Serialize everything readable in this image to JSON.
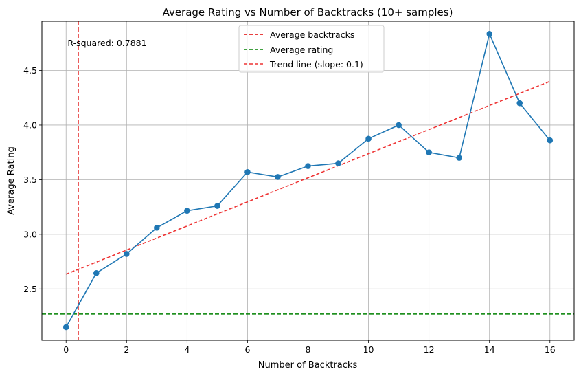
{
  "chart_data": {
    "type": "line",
    "title": "Average Rating vs Number of Backtracks (10+ samples)",
    "xlabel": "Number of Backtracks",
    "ylabel": "Average Rating",
    "xlim": [
      -0.8,
      16.8
    ],
    "ylim": [
      2.03,
      4.95
    ],
    "xticks": [
      0,
      2,
      4,
      6,
      8,
      10,
      12,
      14,
      16
    ],
    "yticks": [
      2.5,
      3.0,
      3.5,
      4.0,
      4.5
    ],
    "xtick_labels": [
      "0",
      "2",
      "4",
      "6",
      "8",
      "10",
      "12",
      "14",
      "16"
    ],
    "ytick_labels": [
      "2.5",
      "3.0",
      "3.5",
      "4.0",
      "4.5"
    ],
    "grid": true,
    "legend_position": "top-center",
    "series": [
      {
        "x": [
          0,
          1,
          2,
          3,
          4,
          5,
          6,
          7,
          8,
          9,
          10,
          11,
          12,
          13,
          14,
          15,
          16
        ],
        "y": [
          2.15,
          2.645,
          2.82,
          3.06,
          3.215,
          3.26,
          3.57,
          3.525,
          3.625,
          3.65,
          3.875,
          4.0,
          3.75,
          3.7,
          4.835,
          4.2,
          3.86
        ],
        "color": "#1f77b4",
        "marker": "circle"
      }
    ],
    "reference_lines": [
      {
        "name": "Average backtracks",
        "orientation": "vertical",
        "value": 0.4,
        "color": "#e00000",
        "style": "dashed"
      },
      {
        "name": "Average rating",
        "orientation": "horizontal",
        "value": 2.27,
        "color": "#008000",
        "style": "dashed"
      }
    ],
    "trend_line": {
      "name": "Trend line (slope: 0.1)",
      "x": [
        0,
        16
      ],
      "y": [
        2.635,
        4.4
      ],
      "color": "#ee3333",
      "style": "dashed"
    },
    "annotations": [
      {
        "text": "R-squared: 0.7881",
        "x": 0.05,
        "y": 4.75
      }
    ]
  }
}
